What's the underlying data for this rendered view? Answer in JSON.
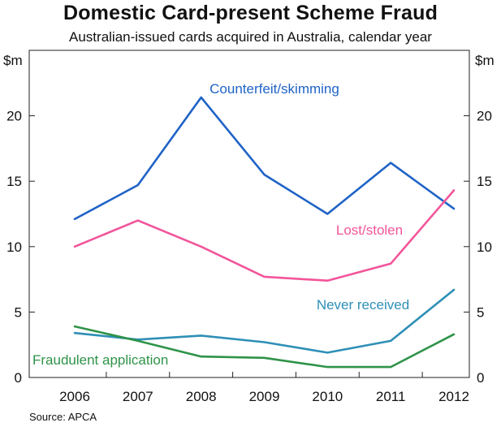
{
  "title": "Domestic Card-present Scheme Fraud",
  "subtitle": "Australian-issued cards acquired in Australia, calendar year",
  "unit_left": "$m",
  "unit_right": "$m",
  "source": "Source: APCA",
  "chart_data": {
    "type": "line",
    "x": [
      "2006",
      "2007",
      "2008",
      "2009",
      "2010",
      "2011",
      "2012"
    ],
    "ylim": [
      0,
      25
    ],
    "yticks": [
      0,
      5,
      10,
      15,
      20
    ],
    "grid": false,
    "series": [
      {
        "name": "Counterfeit/skimming",
        "color": "#1f63c6",
        "values": [
          12.1,
          14.7,
          21.4,
          15.5,
          12.5,
          16.4,
          12.9
        ]
      },
      {
        "name": "Lost/stolen",
        "color": "#f2559a",
        "values": [
          10.0,
          12.0,
          10.0,
          7.7,
          7.4,
          8.7,
          14.3
        ]
      },
      {
        "name": "Never received",
        "color": "#2e8fb6",
        "values": [
          3.4,
          2.9,
          3.2,
          2.7,
          1.9,
          2.8,
          6.7
        ]
      },
      {
        "name": "Fraudulent application",
        "color": "#2e9348",
        "values": [
          3.9,
          2.8,
          1.6,
          1.5,
          0.8,
          0.8,
          3.3
        ]
      }
    ]
  }
}
